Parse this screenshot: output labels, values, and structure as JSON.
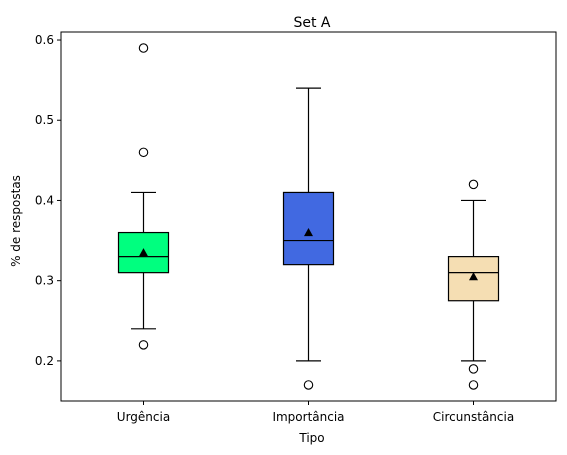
{
  "chart_data": {
    "type": "box",
    "title": "Set A",
    "xlabel": "Tipo",
    "ylabel": "% de respostas",
    "ylim": [
      0.15,
      0.61
    ],
    "yticks": [
      0.2,
      0.3,
      0.4,
      0.5,
      0.6
    ],
    "ytick_labels": [
      "0.2",
      "0.3",
      "0.4",
      "0.5",
      "0.6"
    ],
    "grid": false,
    "categories": [
      "Urgência",
      "Importância",
      "Circunstância"
    ],
    "boxes": [
      {
        "name": "Urgência",
        "color": "#00ff7f",
        "whisker_low": 0.24,
        "q1": 0.31,
        "median": 0.33,
        "q3": 0.36,
        "whisker_high": 0.41,
        "mean": 0.335,
        "outliers": [
          0.22,
          0.46,
          0.59
        ]
      },
      {
        "name": "Importância",
        "color": "#4169e1",
        "whisker_low": 0.2,
        "q1": 0.32,
        "median": 0.35,
        "q3": 0.41,
        "whisker_high": 0.54,
        "mean": 0.36,
        "outliers": [
          0.17
        ]
      },
      {
        "name": "Circunstância",
        "color": "#f5deb3",
        "whisker_low": 0.2,
        "q1": 0.275,
        "median": 0.31,
        "q3": 0.33,
        "whisker_high": 0.4,
        "mean": 0.305,
        "outliers": [
          0.17,
          0.19,
          0.42
        ]
      }
    ]
  }
}
